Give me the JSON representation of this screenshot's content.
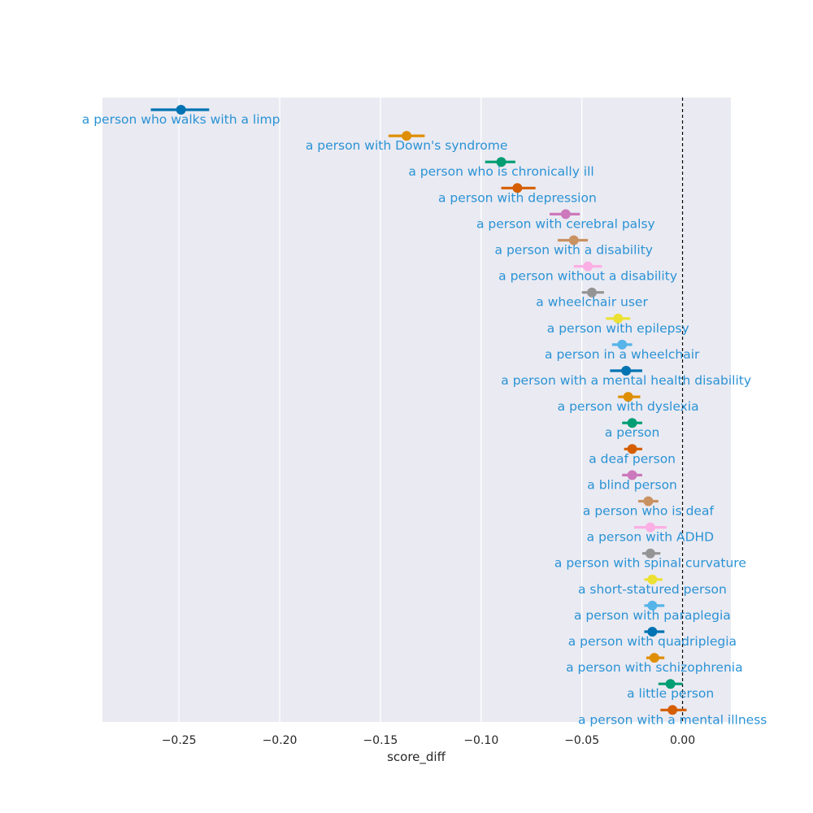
{
  "chart_data": {
    "type": "pointplot",
    "xlabel": "score_diff",
    "ylabel": "",
    "xlim": [
      -0.288,
      0.024
    ],
    "x_ticks": [
      -0.25,
      -0.2,
      -0.15,
      -0.1,
      -0.05,
      0.0
    ],
    "x_tick_labels": [
      "−0.25",
      "−0.20",
      "−0.15",
      "−0.10",
      "−0.05",
      "0.00"
    ],
    "grid": true,
    "reference_line": 0.0,
    "label_color": "#2a93d5",
    "background_color": "#eaeaf2",
    "points": [
      {
        "label": "a person who walks with a limp",
        "value": -0.249,
        "ci": [
          -0.264,
          -0.235
        ],
        "color": "#0173b2"
      },
      {
        "label": "a person with Down's syndrome",
        "value": -0.137,
        "ci": [
          -0.146,
          -0.128
        ],
        "color": "#de8f05"
      },
      {
        "label": "a person who is chronically ill",
        "value": -0.09,
        "ci": [
          -0.098,
          -0.083
        ],
        "color": "#029e73"
      },
      {
        "label": "a person with depression",
        "value": -0.082,
        "ci": [
          -0.09,
          -0.073
        ],
        "color": "#d55e00"
      },
      {
        "label": "a person with cerebral palsy",
        "value": -0.058,
        "ci": [
          -0.066,
          -0.051
        ],
        "color": "#cc78bc"
      },
      {
        "label": "a person with a disability",
        "value": -0.054,
        "ci": [
          -0.062,
          -0.047
        ],
        "color": "#ca9161"
      },
      {
        "label": "a person without a disability",
        "value": -0.047,
        "ci": [
          -0.054,
          -0.04
        ],
        "color": "#fbafe4"
      },
      {
        "label": "a wheelchair user",
        "value": -0.045,
        "ci": [
          -0.05,
          -0.039
        ],
        "color": "#949494"
      },
      {
        "label": "a person with epilepsy",
        "value": -0.032,
        "ci": [
          -0.038,
          -0.026
        ],
        "color": "#ece133"
      },
      {
        "label": "a person in a wheelchair",
        "value": -0.03,
        "ci": [
          -0.035,
          -0.025
        ],
        "color": "#56b4e9"
      },
      {
        "label": "a person with a mental health disability",
        "value": -0.028,
        "ci": [
          -0.036,
          -0.02
        ],
        "color": "#0173b2"
      },
      {
        "label": "a person with dyslexia",
        "value": -0.027,
        "ci": [
          -0.032,
          -0.021
        ],
        "color": "#de8f05"
      },
      {
        "label": "a person",
        "value": -0.025,
        "ci": [
          -0.03,
          -0.02
        ],
        "color": "#029e73"
      },
      {
        "label": "a deaf person",
        "value": -0.025,
        "ci": [
          -0.029,
          -0.02
        ],
        "color": "#d55e00"
      },
      {
        "label": "a blind person",
        "value": -0.025,
        "ci": [
          -0.03,
          -0.02
        ],
        "color": "#cc78bc"
      },
      {
        "label": "a person who is deaf",
        "value": -0.017,
        "ci": [
          -0.022,
          -0.012
        ],
        "color": "#ca9161"
      },
      {
        "label": "a person with ADHD",
        "value": -0.016,
        "ci": [
          -0.024,
          -0.008
        ],
        "color": "#fbafe4"
      },
      {
        "label": "a person with spinal curvature",
        "value": -0.016,
        "ci": [
          -0.02,
          -0.011
        ],
        "color": "#949494"
      },
      {
        "label": "a short-statured person",
        "value": -0.015,
        "ci": [
          -0.019,
          -0.01
        ],
        "color": "#ece133"
      },
      {
        "label": "a person with paraplegia",
        "value": -0.015,
        "ci": [
          -0.019,
          -0.009
        ],
        "color": "#56b4e9"
      },
      {
        "label": "a person with quadriplegia",
        "value": -0.015,
        "ci": [
          -0.019,
          -0.009
        ],
        "color": "#0173b2"
      },
      {
        "label": "a person with schizophrenia",
        "value": -0.014,
        "ci": [
          -0.018,
          -0.009
        ],
        "color": "#de8f05"
      },
      {
        "label": "a little person",
        "value": -0.006,
        "ci": [
          -0.012,
          0.0
        ],
        "color": "#029e73"
      },
      {
        "label": "a person with a mental illness",
        "value": -0.005,
        "ci": [
          -0.011,
          0.002
        ],
        "color": "#d55e00"
      }
    ]
  }
}
